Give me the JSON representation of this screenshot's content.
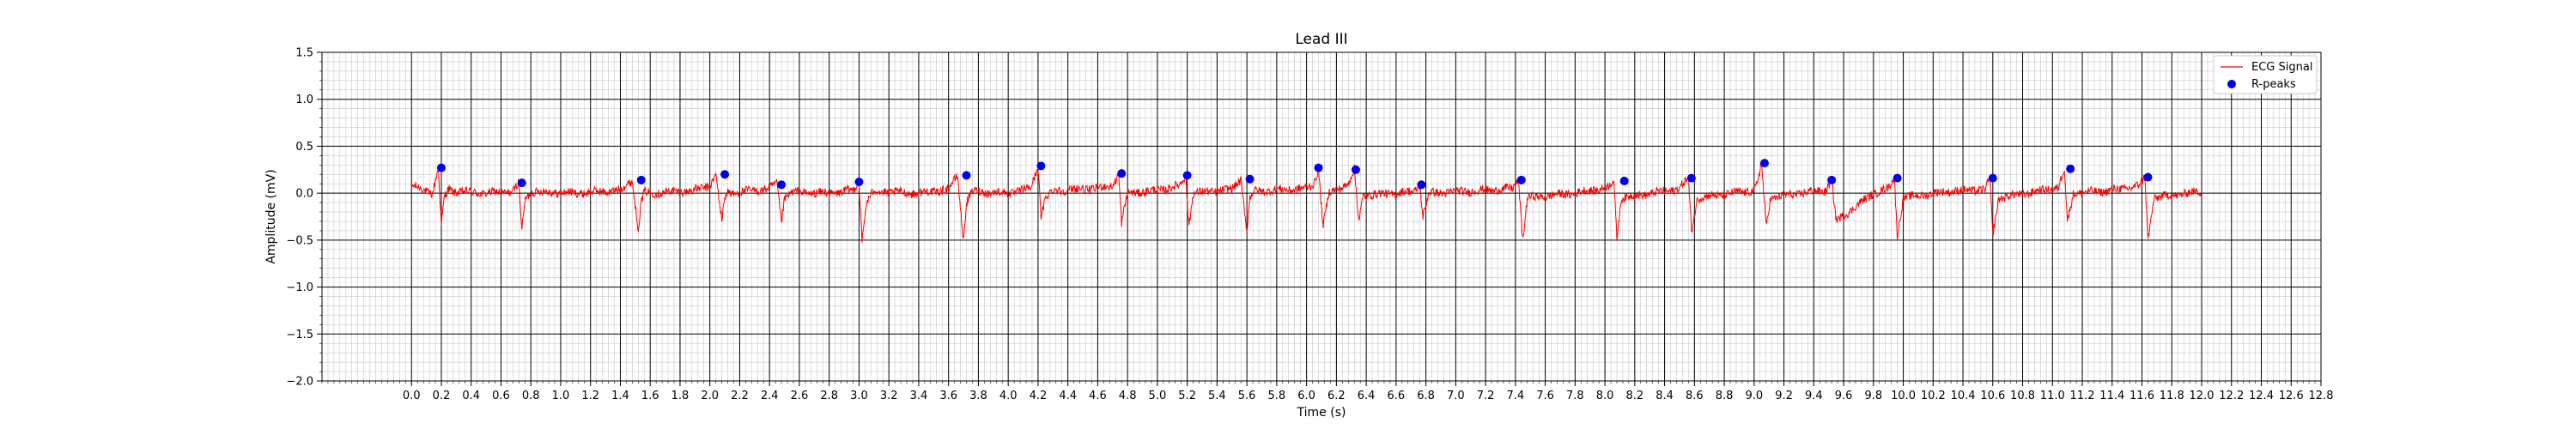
{
  "chart_data": {
    "type": "line",
    "title": "Lead III",
    "xlabel": "Time (s)",
    "ylabel": "Amplitude (mV)",
    "xlim": [
      -0.6,
      12.8
    ],
    "ylim": [
      -2.0,
      1.5
    ],
    "x_ticks": [
      0.0,
      0.2,
      0.4,
      0.6,
      0.8,
      1.0,
      1.2,
      1.4,
      1.6,
      1.8,
      2.0,
      2.2,
      2.4,
      2.6,
      2.8,
      3.0,
      3.2,
      3.4,
      3.6,
      3.8,
      4.0,
      4.2,
      4.4,
      4.6,
      4.8,
      5.0,
      5.2,
      5.4,
      5.6,
      5.8,
      6.0,
      6.2,
      6.4,
      6.6,
      6.8,
      7.0,
      7.2,
      7.4,
      7.6,
      7.8,
      8.0,
      8.2,
      8.4,
      8.6,
      8.8,
      9.0,
      9.2,
      9.4,
      9.6,
      9.8,
      10.0,
      10.2,
      10.4,
      10.6,
      10.8,
      11.0,
      11.2,
      11.4,
      11.6,
      11.8,
      12.0,
      12.2,
      12.4,
      12.6,
      12.8
    ],
    "x_tick_labels": [
      "0.0",
      "0.2",
      "0.4",
      "0.6",
      "0.8",
      "1.0",
      "1.2",
      "1.4",
      "1.6",
      "1.8",
      "2.0",
      "2.2",
      "2.4",
      "2.6",
      "2.8",
      "3.0",
      "3.2",
      "3.4",
      "3.6",
      "3.8",
      "4.0",
      "4.2",
      "4.4",
      "4.6",
      "4.8",
      "5.0",
      "5.2",
      "5.4",
      "5.6",
      "5.8",
      "6.0",
      "6.2",
      "6.4",
      "6.6",
      "6.8",
      "7.0",
      "7.2",
      "7.4",
      "7.6",
      "7.8",
      "8.0",
      "8.2",
      "8.4",
      "8.6",
      "8.8",
      "9.0",
      "9.2",
      "9.4",
      "9.6",
      "9.8",
      "10.0",
      "10.2",
      "10.4",
      "10.6",
      "10.8",
      "11.0",
      "11.2",
      "11.4",
      "11.6",
      "11.8",
      "12.0",
      "12.2",
      "12.4",
      "12.6",
      "12.8"
    ],
    "y_ticks": [
      -2.0,
      -1.5,
      -1.0,
      -0.5,
      0.0,
      0.5,
      1.0,
      1.5
    ],
    "y_tick_labels": [
      "−2.0",
      "−1.5",
      "−1.0",
      "−0.5",
      "0.0",
      "0.5",
      "1.0",
      "1.5"
    ],
    "grid": true,
    "legend_position": "top-right",
    "series": [
      {
        "name": "ECG Signal",
        "kind": "line",
        "color": "#ff0000",
        "duration": 12.0,
        "x": [
          0.0,
          0.14,
          0.18,
          0.2,
          0.22,
          0.25,
          0.28,
          0.5,
          0.68,
          0.72,
          0.74,
          0.76,
          0.8,
          1.1,
          1.4,
          1.48,
          1.52,
          1.54,
          1.56,
          1.6,
          1.9,
          2.0,
          2.04,
          2.08,
          2.1,
          2.12,
          2.15,
          2.4,
          2.45,
          2.48,
          2.5,
          2.55,
          2.8,
          2.96,
          3.0,
          3.02,
          3.05,
          3.1,
          3.4,
          3.6,
          3.66,
          3.7,
          3.72,
          3.76,
          4.0,
          4.15,
          4.2,
          4.22,
          4.25,
          4.3,
          4.6,
          4.7,
          4.74,
          4.76,
          4.8,
          5.0,
          5.15,
          5.19,
          5.21,
          5.24,
          5.5,
          5.56,
          5.6,
          5.62,
          5.65,
          6.0,
          6.05,
          6.08,
          6.11,
          6.15,
          6.28,
          6.32,
          6.35,
          6.38,
          6.6,
          6.72,
          6.76,
          6.78,
          6.82,
          7.2,
          7.38,
          7.42,
          7.45,
          7.48,
          7.8,
          8.02,
          8.06,
          8.08,
          8.11,
          8.4,
          8.5,
          8.56,
          8.58,
          8.62,
          9.0,
          9.02,
          9.05,
          9.08,
          9.11,
          9.4,
          9.48,
          9.52,
          9.55,
          9.8,
          9.9,
          9.94,
          9.96,
          10.0,
          10.3,
          10.55,
          10.58,
          10.6,
          10.64,
          10.9,
          11.04,
          11.08,
          11.1,
          11.14,
          11.4,
          11.58,
          11.62,
          11.64,
          11.68,
          12.0
        ],
        "y": [
          0.08,
          0.0,
          0.27,
          -0.35,
          -0.05,
          0.05,
          0.02,
          0.0,
          0.02,
          0.11,
          -0.4,
          -0.08,
          0.02,
          0.0,
          0.03,
          0.14,
          -0.38,
          -0.1,
          0.01,
          0.0,
          0.03,
          0.08,
          0.2,
          -0.3,
          -0.05,
          0.02,
          0.0,
          0.05,
          0.1,
          -0.3,
          -0.05,
          0.01,
          0.0,
          0.03,
          0.12,
          -0.5,
          -0.1,
          0.02,
          0.0,
          0.04,
          0.19,
          -0.5,
          -0.1,
          0.02,
          0.0,
          0.05,
          0.29,
          -0.25,
          -0.05,
          0.03,
          0.05,
          0.08,
          0.21,
          -0.32,
          0.0,
          0.03,
          0.08,
          0.19,
          -0.35,
          0.0,
          0.04,
          0.15,
          -0.4,
          -0.05,
          0.02,
          0.05,
          0.1,
          0.27,
          -0.35,
          0.0,
          0.1,
          0.25,
          -0.3,
          -0.02,
          0.0,
          0.02,
          0.09,
          -0.25,
          0.0,
          0.03,
          0.05,
          0.14,
          -0.5,
          -0.05,
          0.0,
          0.06,
          0.13,
          -0.48,
          -0.05,
          0.02,
          0.05,
          0.16,
          -0.4,
          -0.05,
          0.03,
          0.1,
          0.32,
          -0.35,
          -0.05,
          0.02,
          0.03,
          0.14,
          -0.3,
          0.0,
          0.05,
          0.16,
          -0.45,
          -0.05,
          0.02,
          0.04,
          0.16,
          -0.45,
          -0.05,
          0.02,
          0.06,
          0.26,
          -0.3,
          0.0,
          0.03,
          0.08,
          0.17,
          -0.5,
          -0.05,
          0.02
        ]
      },
      {
        "name": "R-peaks",
        "kind": "scatter",
        "color": "#0000ee",
        "x": [
          0.2,
          0.74,
          1.54,
          2.1,
          2.48,
          3.0,
          3.72,
          4.22,
          4.76,
          5.2,
          5.62,
          6.08,
          6.33,
          6.77,
          7.44,
          8.13,
          8.58,
          9.07,
          9.52,
          9.96,
          10.6,
          11.12,
          11.64
        ],
        "y": [
          0.27,
          0.11,
          0.14,
          0.2,
          0.09,
          0.12,
          0.19,
          0.29,
          0.21,
          0.19,
          0.15,
          0.27,
          0.25,
          0.09,
          0.14,
          0.13,
          0.16,
          0.32,
          0.14,
          0.16,
          0.16,
          0.26,
          0.17
        ]
      }
    ]
  }
}
